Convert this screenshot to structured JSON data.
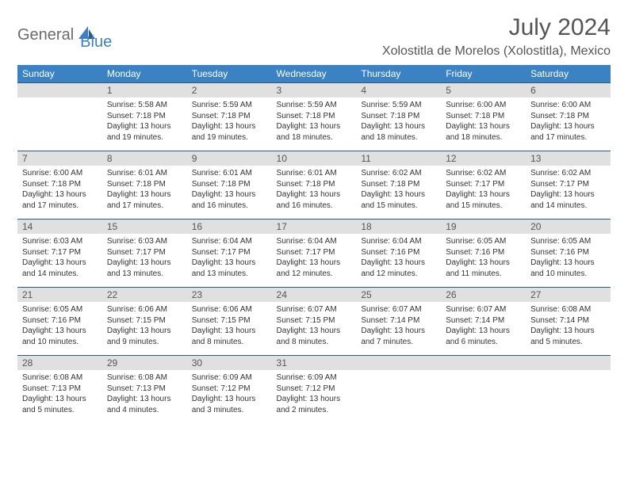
{
  "logo": {
    "general": "General",
    "blue": "Blue"
  },
  "title": "July 2024",
  "location": "Xolostitla de Morelos (Xolostitla), Mexico",
  "colors": {
    "header_bg": "#3b82c4",
    "header_text": "#ffffff",
    "daynum_bg": "#e0e0e0",
    "daynum_text": "#555555",
    "body_text": "#333333",
    "rule": "#2a5b87"
  },
  "daysOfWeek": [
    "Sunday",
    "Monday",
    "Tuesday",
    "Wednesday",
    "Thursday",
    "Friday",
    "Saturday"
  ],
  "weeks": [
    [
      {
        "n": "",
        "sr": "",
        "ss": "",
        "dl": ""
      },
      {
        "n": "1",
        "sr": "Sunrise: 5:58 AM",
        "ss": "Sunset: 7:18 PM",
        "dl": "Daylight: 13 hours and 19 minutes."
      },
      {
        "n": "2",
        "sr": "Sunrise: 5:59 AM",
        "ss": "Sunset: 7:18 PM",
        "dl": "Daylight: 13 hours and 19 minutes."
      },
      {
        "n": "3",
        "sr": "Sunrise: 5:59 AM",
        "ss": "Sunset: 7:18 PM",
        "dl": "Daylight: 13 hours and 18 minutes."
      },
      {
        "n": "4",
        "sr": "Sunrise: 5:59 AM",
        "ss": "Sunset: 7:18 PM",
        "dl": "Daylight: 13 hours and 18 minutes."
      },
      {
        "n": "5",
        "sr": "Sunrise: 6:00 AM",
        "ss": "Sunset: 7:18 PM",
        "dl": "Daylight: 13 hours and 18 minutes."
      },
      {
        "n": "6",
        "sr": "Sunrise: 6:00 AM",
        "ss": "Sunset: 7:18 PM",
        "dl": "Daylight: 13 hours and 17 minutes."
      }
    ],
    [
      {
        "n": "7",
        "sr": "Sunrise: 6:00 AM",
        "ss": "Sunset: 7:18 PM",
        "dl": "Daylight: 13 hours and 17 minutes."
      },
      {
        "n": "8",
        "sr": "Sunrise: 6:01 AM",
        "ss": "Sunset: 7:18 PM",
        "dl": "Daylight: 13 hours and 17 minutes."
      },
      {
        "n": "9",
        "sr": "Sunrise: 6:01 AM",
        "ss": "Sunset: 7:18 PM",
        "dl": "Daylight: 13 hours and 16 minutes."
      },
      {
        "n": "10",
        "sr": "Sunrise: 6:01 AM",
        "ss": "Sunset: 7:18 PM",
        "dl": "Daylight: 13 hours and 16 minutes."
      },
      {
        "n": "11",
        "sr": "Sunrise: 6:02 AM",
        "ss": "Sunset: 7:18 PM",
        "dl": "Daylight: 13 hours and 15 minutes."
      },
      {
        "n": "12",
        "sr": "Sunrise: 6:02 AM",
        "ss": "Sunset: 7:17 PM",
        "dl": "Daylight: 13 hours and 15 minutes."
      },
      {
        "n": "13",
        "sr": "Sunrise: 6:02 AM",
        "ss": "Sunset: 7:17 PM",
        "dl": "Daylight: 13 hours and 14 minutes."
      }
    ],
    [
      {
        "n": "14",
        "sr": "Sunrise: 6:03 AM",
        "ss": "Sunset: 7:17 PM",
        "dl": "Daylight: 13 hours and 14 minutes."
      },
      {
        "n": "15",
        "sr": "Sunrise: 6:03 AM",
        "ss": "Sunset: 7:17 PM",
        "dl": "Daylight: 13 hours and 13 minutes."
      },
      {
        "n": "16",
        "sr": "Sunrise: 6:04 AM",
        "ss": "Sunset: 7:17 PM",
        "dl": "Daylight: 13 hours and 13 minutes."
      },
      {
        "n": "17",
        "sr": "Sunrise: 6:04 AM",
        "ss": "Sunset: 7:17 PM",
        "dl": "Daylight: 13 hours and 12 minutes."
      },
      {
        "n": "18",
        "sr": "Sunrise: 6:04 AM",
        "ss": "Sunset: 7:16 PM",
        "dl": "Daylight: 13 hours and 12 minutes."
      },
      {
        "n": "19",
        "sr": "Sunrise: 6:05 AM",
        "ss": "Sunset: 7:16 PM",
        "dl": "Daylight: 13 hours and 11 minutes."
      },
      {
        "n": "20",
        "sr": "Sunrise: 6:05 AM",
        "ss": "Sunset: 7:16 PM",
        "dl": "Daylight: 13 hours and 10 minutes."
      }
    ],
    [
      {
        "n": "21",
        "sr": "Sunrise: 6:05 AM",
        "ss": "Sunset: 7:16 PM",
        "dl": "Daylight: 13 hours and 10 minutes."
      },
      {
        "n": "22",
        "sr": "Sunrise: 6:06 AM",
        "ss": "Sunset: 7:15 PM",
        "dl": "Daylight: 13 hours and 9 minutes."
      },
      {
        "n": "23",
        "sr": "Sunrise: 6:06 AM",
        "ss": "Sunset: 7:15 PM",
        "dl": "Daylight: 13 hours and 8 minutes."
      },
      {
        "n": "24",
        "sr": "Sunrise: 6:07 AM",
        "ss": "Sunset: 7:15 PM",
        "dl": "Daylight: 13 hours and 8 minutes."
      },
      {
        "n": "25",
        "sr": "Sunrise: 6:07 AM",
        "ss": "Sunset: 7:14 PM",
        "dl": "Daylight: 13 hours and 7 minutes."
      },
      {
        "n": "26",
        "sr": "Sunrise: 6:07 AM",
        "ss": "Sunset: 7:14 PM",
        "dl": "Daylight: 13 hours and 6 minutes."
      },
      {
        "n": "27",
        "sr": "Sunrise: 6:08 AM",
        "ss": "Sunset: 7:14 PM",
        "dl": "Daylight: 13 hours and 5 minutes."
      }
    ],
    [
      {
        "n": "28",
        "sr": "Sunrise: 6:08 AM",
        "ss": "Sunset: 7:13 PM",
        "dl": "Daylight: 13 hours and 5 minutes."
      },
      {
        "n": "29",
        "sr": "Sunrise: 6:08 AM",
        "ss": "Sunset: 7:13 PM",
        "dl": "Daylight: 13 hours and 4 minutes."
      },
      {
        "n": "30",
        "sr": "Sunrise: 6:09 AM",
        "ss": "Sunset: 7:12 PM",
        "dl": "Daylight: 13 hours and 3 minutes."
      },
      {
        "n": "31",
        "sr": "Sunrise: 6:09 AM",
        "ss": "Sunset: 7:12 PM",
        "dl": "Daylight: 13 hours and 2 minutes."
      },
      {
        "n": "",
        "sr": "",
        "ss": "",
        "dl": ""
      },
      {
        "n": "",
        "sr": "",
        "ss": "",
        "dl": ""
      },
      {
        "n": "",
        "sr": "",
        "ss": "",
        "dl": ""
      }
    ]
  ]
}
